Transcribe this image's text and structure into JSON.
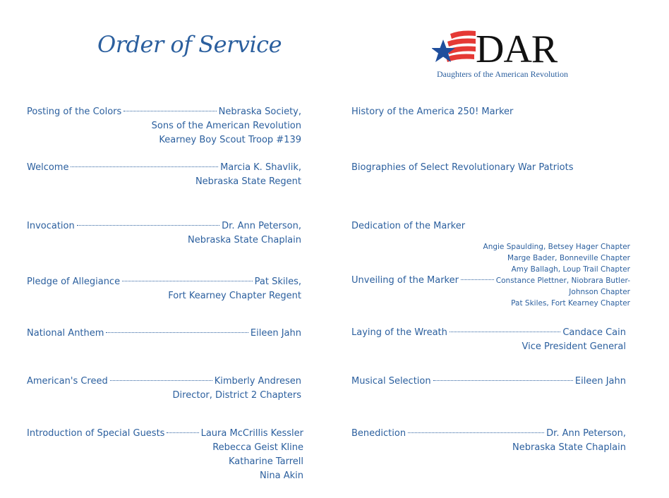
{
  "title": "Order of Service",
  "logo": {
    "text": "DAR",
    "subtitle": "Daughters of the American Revolution",
    "colors": {
      "star": "#1f4e9c",
      "stripes": "#e53935"
    }
  },
  "text_color": "#2b5f9e",
  "left_column": [
    {
      "label": "Posting of the Colors",
      "value": "Nebraska Society,",
      "more": [
        "Sons of the American Revolution",
        "Kearney Boy Scout Troop #139"
      ]
    },
    {
      "label": "Welcome",
      "value": "Marcia K. Shavlik,",
      "more": [
        "Nebraska State Regent"
      ]
    },
    {
      "label": "Invocation",
      "value": "Dr. Ann Peterson,",
      "more": [
        "Nebraska State Chaplain"
      ]
    },
    {
      "label": "Pledge of Allegiance",
      "value": "Pat Skiles,",
      "more": [
        "Fort Kearney Chapter Regent"
      ]
    },
    {
      "label": "National Anthem",
      "value": "Eileen Jahn",
      "more": []
    },
    {
      "label": "American's Creed",
      "value": "Kimberly Andresen",
      "more": [
        "Director, District 2 Chapters"
      ]
    },
    {
      "label": "Introduction of Special Guests",
      "value": "Laura McCrillis Kessler",
      "more": [
        "Rebecca Geist Kline",
        "Katharine Tarrell",
        "Nina Akin"
      ]
    }
  ],
  "right_column": [
    {
      "label": "History of the America 250! Marker"
    },
    {
      "label": "Biographies of Select Revolutionary War Patriots"
    },
    {
      "label": "Dedication of the Marker"
    },
    {
      "label": "Unveiling of the Marker",
      "before": [
        "Angie Spaulding, Betsey Hager Chapter",
        "Marge Bader, Bonneville Chapter",
        "Amy Ballagh, Loup Trail Chapter"
      ],
      "value": "Constance Plettner, Niobrara Butler-",
      "more": [
        "Johnson Chapter",
        "Pat Skiles, Fort Kearney Chapter"
      ]
    },
    {
      "label": "Laying of the Wreath",
      "value": "Candace Cain",
      "more": [
        "Vice President General"
      ]
    },
    {
      "label": "Musical Selection",
      "value": "Eileen Jahn",
      "more": []
    },
    {
      "label": "Benediction",
      "value": "Dr. Ann Peterson,",
      "more": [
        "Nebraska State Chaplain"
      ]
    }
  ]
}
